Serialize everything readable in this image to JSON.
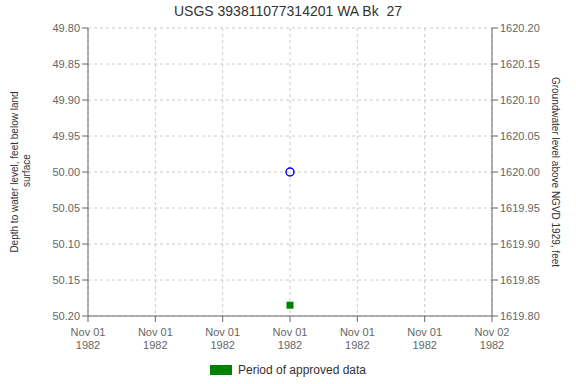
{
  "chart_data": {
    "type": "scatter",
    "title": "USGS 393811077314201 WA Bk  27",
    "y_label": "Depth to water level, feet below land\n surface",
    "y2_label": "Groundwater level above NGVD 1929, feet",
    "categories": [
      "Nov 01\n1982",
      "Nov 01\n1982",
      "Nov 01\n1982",
      "Nov 01\n1982",
      "Nov 01\n1982",
      "Nov 01\n1982",
      "Nov 02\n1982"
    ],
    "series": [
      {
        "color": "blue",
        "marker": "circle",
        "values": [
          null,
          null,
          null,
          50.0,
          null,
          null,
          null
        ]
      },
      {
        "name": "Period of approved data",
        "color": "#008000",
        "marker": "square",
        "values": [
          null,
          null,
          null,
          50.185,
          null,
          null,
          null
        ]
      }
    ],
    "ylim": [
      50.2,
      49.8
    ],
    "yticks": [
      {
        "value": 49.8,
        "label": "49.80"
      },
      {
        "value": 49.85,
        "label": "49.85"
      },
      {
        "value": 49.9,
        "label": "49.90"
      },
      {
        "value": 49.95,
        "label": "49.95"
      },
      {
        "value": 50.0,
        "label": "50.00"
      },
      {
        "value": 50.05,
        "label": "50.05"
      },
      {
        "value": 50.1,
        "label": "50.10"
      },
      {
        "value": 50.15,
        "label": "50.15"
      },
      {
        "value": 50.2,
        "label": "50.20"
      }
    ],
    "y2lim": [
      1619.8,
      1620.2
    ],
    "y2ticks": [
      {
        "value": 1620.2,
        "label": "1620.20"
      },
      {
        "value": 1620.15,
        "label": "1620.15"
      },
      {
        "value": 1620.1,
        "label": "1620.10"
      },
      {
        "value": 1620.05,
        "label": "1620.05"
      },
      {
        "value": 1620.0,
        "label": "1620.00"
      },
      {
        "value": 1619.95,
        "label": "1619.95"
      },
      {
        "value": 1619.9,
        "label": "1619.90"
      },
      {
        "value": 1619.85,
        "label": "1619.85"
      },
      {
        "value": 1619.8,
        "label": "1619.80"
      }
    ],
    "grid": true,
    "legend": "bottom"
  }
}
